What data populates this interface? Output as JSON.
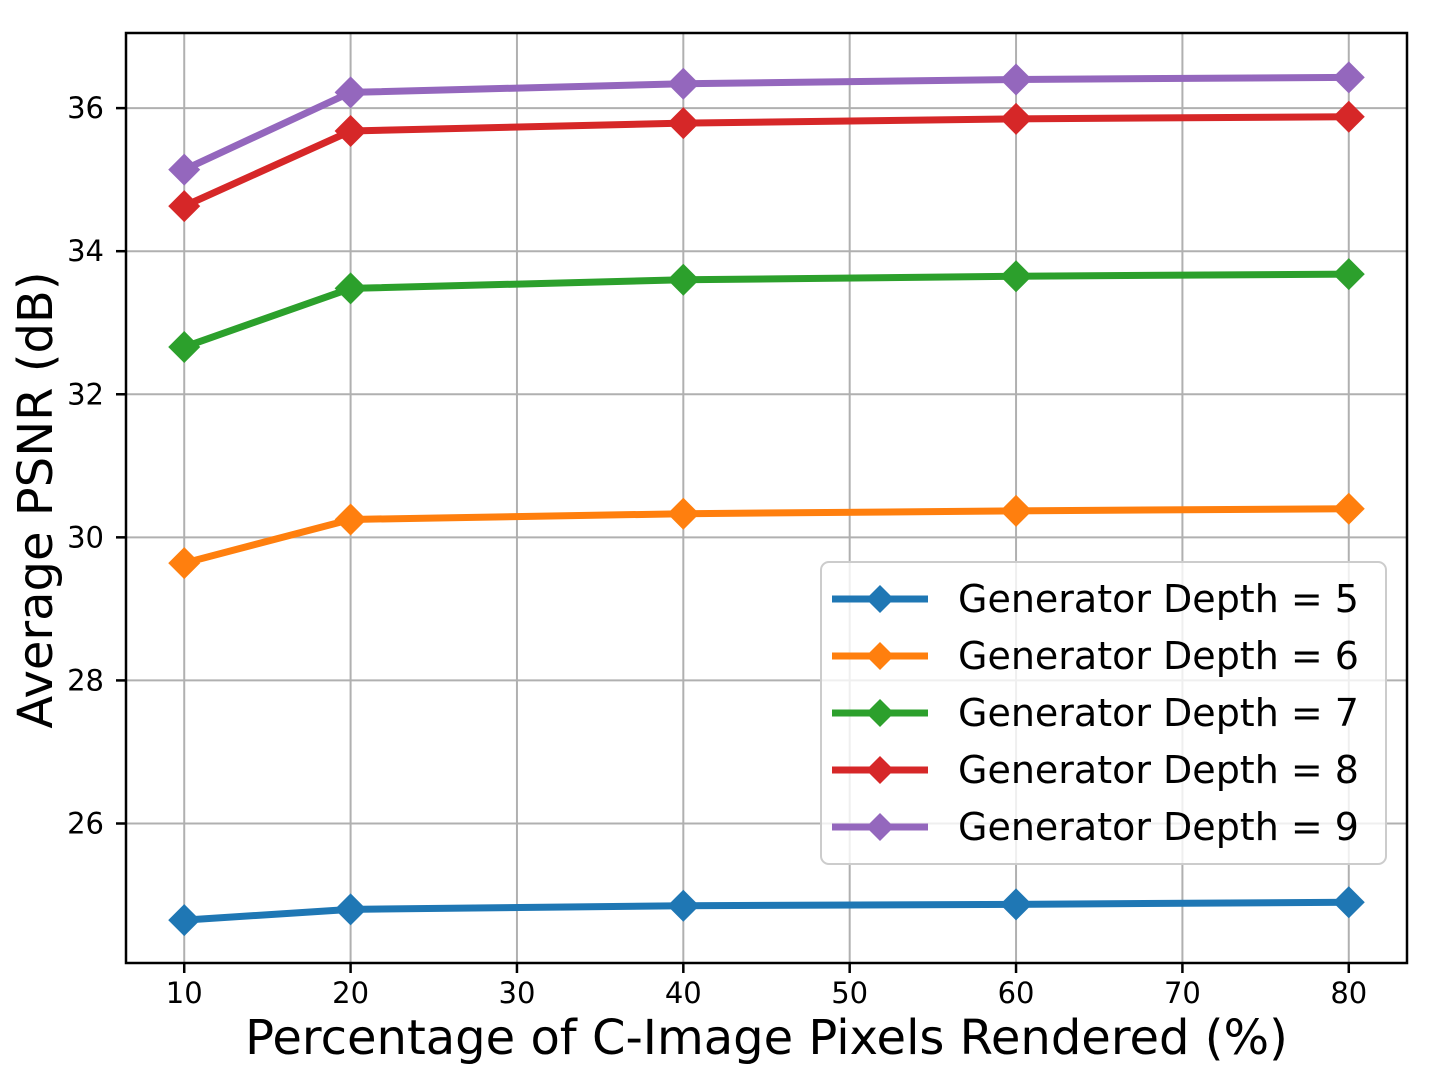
{
  "chart_data": {
    "type": "line",
    "title": "",
    "xlabel": "Percentage of C-Image Pixels Rendered (%)",
    "ylabel": "Average PSNR (dB)",
    "x": [
      10,
      20,
      40,
      60,
      80
    ],
    "xticks": [
      10,
      20,
      30,
      40,
      50,
      60,
      70,
      80
    ],
    "yticks": [
      26,
      28,
      30,
      32,
      34,
      36
    ],
    "xlim": [
      6.5,
      83.5
    ],
    "ylim": [
      24.05,
      37.05
    ],
    "grid": true,
    "legend_position": "lower-right-inside",
    "marker": "diamond",
    "series": [
      {
        "name": "Generator Depth = 5",
        "color": "#1f77b4",
        "values": [
          24.65,
          24.8,
          24.85,
          24.87,
          24.9
        ]
      },
      {
        "name": "Generator Depth = 6",
        "color": "#ff7f0e",
        "values": [
          29.64,
          30.25,
          30.33,
          30.37,
          30.4
        ]
      },
      {
        "name": "Generator Depth = 7",
        "color": "#2ca02c",
        "values": [
          32.66,
          33.48,
          33.6,
          33.65,
          33.68
        ]
      },
      {
        "name": "Generator Depth = 8",
        "color": "#d62728",
        "values": [
          34.63,
          35.68,
          35.79,
          35.85,
          35.88
        ]
      },
      {
        "name": "Generator Depth = 9",
        "color": "#9467bd",
        "values": [
          35.14,
          36.22,
          36.34,
          36.4,
          36.43
        ]
      }
    ],
    "colors": {
      "grid": "#b0b0b0",
      "axis": "#000000",
      "tick_label": "#000000",
      "background": "#ffffff",
      "legend_border": "#cccccc"
    }
  }
}
